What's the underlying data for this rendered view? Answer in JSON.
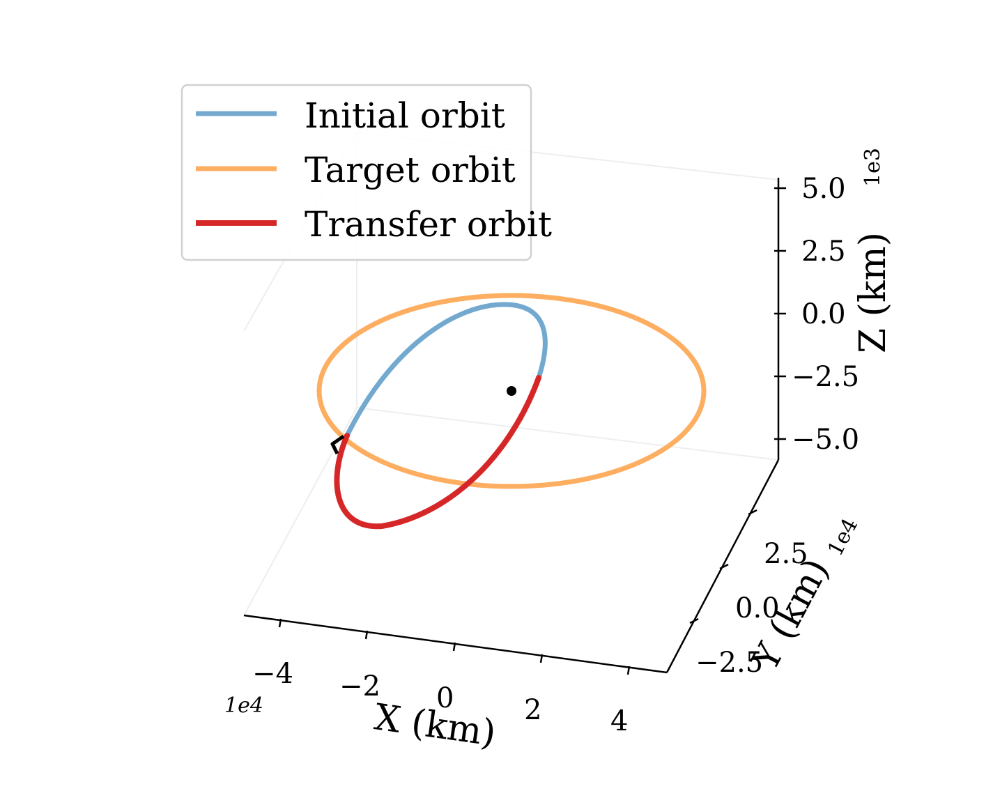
{
  "chart_data": {
    "type": "line",
    "projection": "3d",
    "legend": {
      "placement": "upper-left",
      "entries": [
        {
          "label": "Initial orbit",
          "color": "#74a9cf"
        },
        {
          "label": "Target orbit",
          "color": "#fdae61"
        },
        {
          "label": "Transfer orbit",
          "color": "#d62728"
        }
      ]
    },
    "axes": {
      "x": {
        "label": "X (km)",
        "offset": "1e4",
        "ticks": [
          "−4",
          "−2",
          "0",
          "2",
          "4"
        ],
        "range": [
          -5,
          5
        ]
      },
      "y": {
        "label": "Y (km)",
        "offset": "1e4",
        "ticks": [
          "−2.5",
          "0.0",
          "2.5"
        ],
        "range": [
          -3.5,
          4.5
        ]
      },
      "z": {
        "label": "Z (km)",
        "offset": "1e3",
        "ticks": [
          "−5.0",
          "−2.5",
          "0.0",
          "2.5",
          "5.0"
        ],
        "range": [
          -5.6,
          5.6
        ]
      }
    },
    "series": [
      {
        "name": "Target orbit",
        "color": "#fdae61",
        "kind": "circular orbit",
        "radius_km": 42164,
        "inclination_deg": 0
      },
      {
        "name": "Initial orbit",
        "color": "#74a9cf",
        "kind": "elliptical orbit (upper arc)",
        "apogee_km": 42164,
        "perigee_km": 7000
      },
      {
        "name": "Transfer orbit",
        "color": "#d62728",
        "kind": "elliptical orbit (lower arc)",
        "apogee_km": 42164,
        "perigee_km": 7000
      }
    ],
    "markers": [
      {
        "name": "central body",
        "shape": "dot",
        "color": "#000000"
      },
      {
        "name": "maneuver point",
        "shape": "arrow",
        "color": "#000000"
      }
    ],
    "grid": false
  }
}
